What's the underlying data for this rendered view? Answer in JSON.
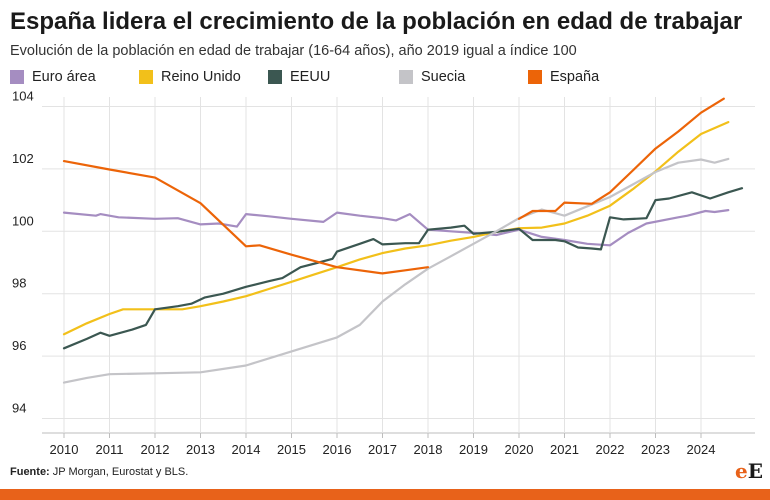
{
  "header": {
    "title": "España lidera el crecimiento de la población en edad de trabajar",
    "subtitle": "Evolución de la población en edad de trabajar (16-64 años), año 2019 igual a índice 100"
  },
  "footer": {
    "source_label": "Fuente:",
    "source_text": " JP Morgan, Eurostat y BLS.",
    "logo_e": "e",
    "logo_E": "E"
  },
  "chart_data": {
    "type": "line",
    "title": "España lidera el crecimiento de la población en edad de trabajar",
    "subtitle": "Evolución de la población en edad de trabajar (16-64 años), año 2019 igual a índice 100",
    "xlabel": "",
    "ylabel": "",
    "xlim": [
      2010,
      2024.6
    ],
    "ylim": [
      93.5,
      104.5
    ],
    "x_ticks": [
      "2010",
      "2011",
      "2012",
      "2013",
      "2014",
      "2015",
      "2016",
      "2017",
      "2018",
      "2019",
      "2020",
      "2021",
      "2022",
      "2023",
      "2024"
    ],
    "y_ticks": [
      "94",
      "96",
      "98",
      "100",
      "102",
      "104"
    ],
    "grid": "horizontal",
    "legend_position": "top",
    "series": [
      {
        "name": "Euro área",
        "color": "#a58dc1",
        "points": [
          [
            2010.0,
            100.6
          ],
          [
            2010.7,
            100.5
          ],
          [
            2010.8,
            100.55
          ],
          [
            2011.2,
            100.45
          ],
          [
            2012.0,
            100.4
          ],
          [
            2012.5,
            100.42
          ],
          [
            2013.0,
            100.22
          ],
          [
            2013.4,
            100.25
          ],
          [
            2013.8,
            100.15
          ],
          [
            2014.0,
            100.55
          ],
          [
            2014.5,
            100.48
          ],
          [
            2015.0,
            100.4
          ],
          [
            2015.7,
            100.3
          ],
          [
            2016.0,
            100.6
          ],
          [
            2016.5,
            100.5
          ],
          [
            2017.0,
            100.42
          ],
          [
            2017.3,
            100.35
          ],
          [
            2017.6,
            100.55
          ],
          [
            2018.0,
            100.05
          ],
          [
            2018.5,
            100.0
          ],
          [
            2019.0,
            99.95
          ],
          [
            2019.5,
            99.88
          ],
          [
            2020.0,
            100.05
          ],
          [
            2020.5,
            99.82
          ],
          [
            2021.0,
            99.72
          ],
          [
            2021.5,
            99.6
          ],
          [
            2022.0,
            99.55
          ],
          [
            2022.4,
            99.95
          ],
          [
            2022.8,
            100.25
          ],
          [
            2023.5,
            100.45
          ],
          [
            2023.7,
            100.5
          ],
          [
            2024.1,
            100.65
          ],
          [
            2024.3,
            100.62
          ],
          [
            2024.6,
            100.68
          ]
        ]
      },
      {
        "name": "Reino Unido",
        "color": "#f2c01a",
        "points": [
          [
            2010.0,
            96.7
          ],
          [
            2010.5,
            97.05
          ],
          [
            2011.0,
            97.35
          ],
          [
            2011.3,
            97.5
          ],
          [
            2012.0,
            97.5
          ],
          [
            2012.6,
            97.5
          ],
          [
            2013.0,
            97.6
          ],
          [
            2013.5,
            97.75
          ],
          [
            2014.0,
            97.92
          ],
          [
            2014.5,
            98.15
          ],
          [
            2015.0,
            98.38
          ],
          [
            2015.5,
            98.62
          ],
          [
            2016.0,
            98.85
          ],
          [
            2016.5,
            99.1
          ],
          [
            2017.0,
            99.3
          ],
          [
            2017.5,
            99.45
          ],
          [
            2018.0,
            99.55
          ],
          [
            2018.5,
            99.7
          ],
          [
            2019.0,
            99.82
          ],
          [
            2019.5,
            99.98
          ],
          [
            2020.0,
            100.1
          ],
          [
            2020.5,
            100.12
          ],
          [
            2021.0,
            100.25
          ],
          [
            2021.5,
            100.5
          ],
          [
            2022.0,
            100.82
          ],
          [
            2022.5,
            101.35
          ],
          [
            2023.0,
            101.92
          ],
          [
            2023.5,
            102.55
          ],
          [
            2024.0,
            103.12
          ],
          [
            2024.6,
            103.5
          ]
        ]
      },
      {
        "name": "EEUU",
        "color": "#3b5751",
        "points": [
          [
            2010.0,
            96.25
          ],
          [
            2010.5,
            96.55
          ],
          [
            2010.8,
            96.75
          ],
          [
            2011.0,
            96.65
          ],
          [
            2011.5,
            96.85
          ],
          [
            2011.8,
            97.0
          ],
          [
            2012.0,
            97.5
          ],
          [
            2012.5,
            97.6
          ],
          [
            2012.8,
            97.68
          ],
          [
            2013.1,
            97.88
          ],
          [
            2013.5,
            98.0
          ],
          [
            2014.0,
            98.22
          ],
          [
            2014.5,
            98.4
          ],
          [
            2014.8,
            98.5
          ],
          [
            2015.2,
            98.85
          ],
          [
            2015.6,
            99.0
          ],
          [
            2015.9,
            99.12
          ],
          [
            2016.0,
            99.35
          ],
          [
            2016.3,
            99.5
          ],
          [
            2016.5,
            99.6
          ],
          [
            2016.8,
            99.75
          ],
          [
            2017.0,
            99.58
          ],
          [
            2017.5,
            99.62
          ],
          [
            2017.8,
            99.62
          ],
          [
            2018.0,
            100.05
          ],
          [
            2018.5,
            100.12
          ],
          [
            2018.8,
            100.18
          ],
          [
            2019.0,
            99.92
          ],
          [
            2019.5,
            99.98
          ],
          [
            2020.0,
            100.08
          ],
          [
            2020.3,
            99.72
          ],
          [
            2020.8,
            99.72
          ],
          [
            2021.0,
            99.68
          ],
          [
            2021.3,
            99.48
          ],
          [
            2021.6,
            99.45
          ],
          [
            2021.8,
            99.42
          ],
          [
            2022.0,
            100.45
          ],
          [
            2022.3,
            100.38
          ],
          [
            2022.8,
            100.42
          ],
          [
            2023.0,
            101.0
          ],
          [
            2023.3,
            101.05
          ],
          [
            2023.8,
            101.25
          ],
          [
            2024.2,
            101.05
          ],
          [
            2024.6,
            101.25
          ],
          [
            2024.9,
            101.38
          ]
        ]
      },
      {
        "name": "Suecia",
        "color": "#c4c4c8",
        "points": [
          [
            2010.0,
            95.15
          ],
          [
            2010.5,
            95.3
          ],
          [
            2011.0,
            95.42
          ],
          [
            2012.0,
            95.45
          ],
          [
            2013.0,
            95.48
          ],
          [
            2014.0,
            95.7
          ],
          [
            2015.0,
            96.15
          ],
          [
            2016.0,
            96.6
          ],
          [
            2016.5,
            97.0
          ],
          [
            2017.0,
            97.75
          ],
          [
            2017.5,
            98.3
          ],
          [
            2018.0,
            98.8
          ],
          [
            2018.5,
            99.2
          ],
          [
            2019.0,
            99.6
          ],
          [
            2019.5,
            100.0
          ],
          [
            2020.0,
            100.42
          ],
          [
            2020.5,
            100.7
          ],
          [
            2021.0,
            100.5
          ],
          [
            2021.5,
            100.8
          ],
          [
            2022.0,
            101.1
          ],
          [
            2022.5,
            101.5
          ],
          [
            2023.0,
            101.9
          ],
          [
            2023.5,
            102.2
          ],
          [
            2024.0,
            102.3
          ],
          [
            2024.3,
            102.2
          ],
          [
            2024.6,
            102.32
          ]
        ]
      },
      {
        "name": "España",
        "color": "#ec6408",
        "points": [
          [
            2010.0,
            102.25
          ],
          [
            2011.0,
            101.98
          ],
          [
            2012.0,
            101.72
          ],
          [
            2013.0,
            100.9
          ],
          [
            2014.0,
            99.52
          ],
          [
            2014.3,
            99.55
          ],
          [
            2015.0,
            99.25
          ],
          [
            2016.0,
            98.85
          ],
          [
            2017.0,
            98.65
          ],
          [
            2017.5,
            98.75
          ],
          [
            2018.0,
            98.85
          ]
        ]
      },
      {
        "name": "España",
        "color": "#ec6408",
        "points": [
          [
            2020.0,
            100.4
          ],
          [
            2020.3,
            100.65
          ],
          [
            2020.8,
            100.65
          ],
          [
            2021.0,
            100.92
          ],
          [
            2021.6,
            100.88
          ],
          [
            2022.0,
            101.25
          ],
          [
            2022.5,
            101.95
          ],
          [
            2023.0,
            102.65
          ],
          [
            2023.5,
            103.2
          ],
          [
            2024.0,
            103.8
          ],
          [
            2024.5,
            104.25
          ]
        ]
      }
    ]
  },
  "legend": [
    {
      "label": "Euro área",
      "color": "#a58dc1"
    },
    {
      "label": "Reino Unido",
      "color": "#f2c01a"
    },
    {
      "label": "EEUU",
      "color": "#3b5751"
    },
    {
      "label": "Suecia",
      "color": "#c4c4c8"
    },
    {
      "label": "España",
      "color": "#ec6408"
    }
  ]
}
